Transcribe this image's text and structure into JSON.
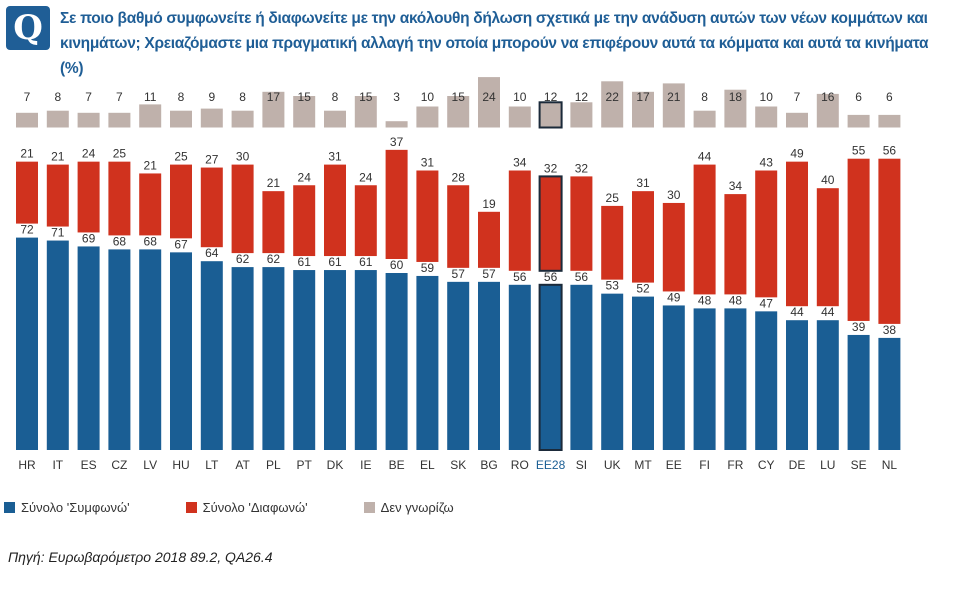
{
  "header": {
    "badge": "Q",
    "question": "Σε ποιο βαθμό συμφωνείτε ή διαφωνείτε με την ακόλουθη δήλωση σχετικά με την ανάδυση αυτών των νέων κομμάτων και κινημάτων; Χρειαζόμαστε μια πραγματική αλλαγή την οποία μπορούν να επιφέρουν αυτά τα κόμματα και αυτά τα κινήματα (%)"
  },
  "chart_data": {
    "type": "bar",
    "stacked": true,
    "categories": [
      "HR",
      "IT",
      "ES",
      "CZ",
      "LV",
      "HU",
      "LT",
      "AT",
      "PL",
      "PT",
      "DK",
      "IE",
      "BE",
      "EL",
      "SK",
      "BG",
      "RO",
      "EE28",
      "SI",
      "UK",
      "MT",
      "EE",
      "FI",
      "FR",
      "CY",
      "DE",
      "LU",
      "SE",
      "NL"
    ],
    "highlight": "EE28",
    "series": [
      {
        "name": "Σύνολο 'Συμφωνώ'",
        "color": "#1a5e94",
        "values": [
          72,
          71,
          69,
          68,
          68,
          67,
          64,
          62,
          62,
          61,
          61,
          61,
          60,
          59,
          57,
          57,
          56,
          56,
          56,
          53,
          52,
          49,
          48,
          48,
          47,
          44,
          44,
          39,
          38
        ]
      },
      {
        "name": "Σύνολο 'Διαφωνώ'",
        "color": "#d0321e",
        "values": [
          21,
          21,
          24,
          25,
          21,
          25,
          27,
          30,
          21,
          24,
          31,
          24,
          37,
          31,
          28,
          19,
          34,
          32,
          32,
          25,
          31,
          30,
          44,
          34,
          43,
          49,
          40,
          55,
          56
        ]
      },
      {
        "name": "Δεν γνωρίζω",
        "color": "#bfb1ab",
        "values": [
          7,
          8,
          7,
          7,
          11,
          8,
          9,
          8,
          17,
          15,
          8,
          15,
          3,
          10,
          15,
          24,
          10,
          12,
          12,
          22,
          17,
          21,
          8,
          18,
          10,
          7,
          16,
          6,
          6
        ]
      }
    ],
    "ylim": [
      0,
      100
    ],
    "xlabel": "",
    "ylabel": ""
  },
  "legend": {
    "agree": "Σύνολο 'Συμφωνώ'",
    "disagree": "Σύνολο 'Διαφωνώ'",
    "dont_know": "Δεν γνωρίζω"
  },
  "colors": {
    "agree": "#1a5e94",
    "disagree": "#d0321e",
    "dont_know": "#bfb1ab",
    "title": "#1f5e96"
  },
  "source": "Πηγή: Ευρωβαρόμετρο 2018 89.2, QA26.4"
}
